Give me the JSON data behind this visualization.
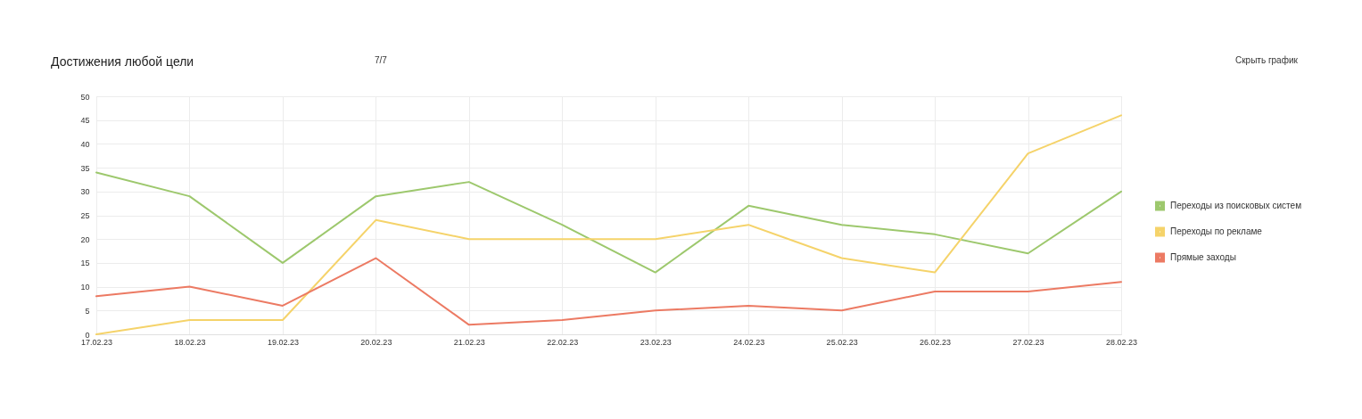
{
  "chart_data": {
    "type": "line",
    "title": "Достижения любой цели",
    "annotations": [
      "7/7",
      "Скрыть график"
    ],
    "categories": [
      "17.02.23",
      "18.02.23",
      "19.02.23",
      "20.02.23",
      "21.02.23",
      "22.02.23",
      "23.02.23",
      "24.02.23",
      "25.02.23",
      "26.02.23",
      "27.02.23",
      "28.02.23"
    ],
    "series": [
      {
        "name": "Переходы из поисковых систем",
        "color": "#9dc86d",
        "values": [
          34,
          29,
          15,
          29,
          32,
          23,
          13,
          27,
          23,
          21,
          17,
          30
        ]
      },
      {
        "name": "Переходы по рекламе",
        "color": "#f5d36a",
        "values": [
          0,
          3,
          3,
          24,
          20,
          20,
          20,
          23,
          16,
          13,
          38,
          46
        ]
      },
      {
        "name": "Прямые заходы",
        "color": "#ec7a63",
        "values": [
          8,
          10,
          6,
          16,
          2,
          3,
          5,
          6,
          5,
          9,
          9,
          11
        ]
      }
    ],
    "ylim": [
      0,
      50
    ],
    "yticks": [
      0,
      5,
      10,
      15,
      20,
      25,
      30,
      35,
      40,
      45,
      50
    ],
    "grid": true,
    "legend": "right"
  }
}
